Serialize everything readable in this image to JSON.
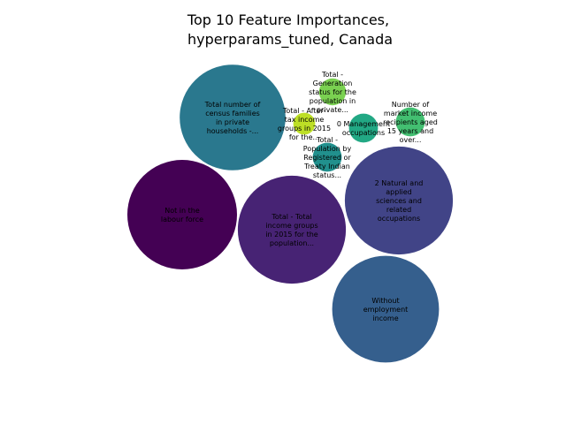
{
  "chart_data": {
    "type": "bubble",
    "title": [
      "Top 10 Feature Importances,",
      "hyperparams_tuned, Canada"
    ],
    "bubbles": [
      {
        "label": [
          "Not in the",
          "labour force"
        ],
        "value": 1.0,
        "color": "#440154"
      },
      {
        "label": [
          "Total - Total",
          "income groups",
          "in 2015 for the",
          "population..."
        ],
        "value": 0.97,
        "color": "#472374"
      },
      {
        "label": [
          "2 Natural and",
          "applied",
          "sciences and",
          "related",
          "occupations"
        ],
        "value": 0.97,
        "color": "#414487"
      },
      {
        "label": [
          "Without",
          "employment",
          "income"
        ],
        "value": 0.95,
        "color": "#355f8d"
      },
      {
        "label": [
          "Total number of",
          "census families",
          "in private",
          "households -..."
        ],
        "value": 0.93,
        "color": "#2a788e"
      },
      {
        "label": [
          "Total -",
          "Population by",
          "Registered or",
          "Treaty Indian",
          "status..."
        ],
        "value": 0.07,
        "color": "#21908d"
      },
      {
        "label": [
          "0 Management",
          "occupations"
        ],
        "value": 0.07,
        "color": "#22a884"
      },
      {
        "label": [
          "Number of",
          "market income",
          "recipients aged",
          "15 years and",
          "over..."
        ],
        "value": 0.07,
        "color": "#43bf71"
      },
      {
        "label": [
          "Total -",
          "Generation",
          "status for the",
          "population in",
          "private..."
        ],
        "value": 0.06,
        "color": "#7ad151"
      },
      {
        "label": [
          "Total - After-",
          "tax income",
          "groups in 2015",
          "for the..."
        ],
        "value": 0.04,
        "color": "#bddf26"
      }
    ]
  }
}
